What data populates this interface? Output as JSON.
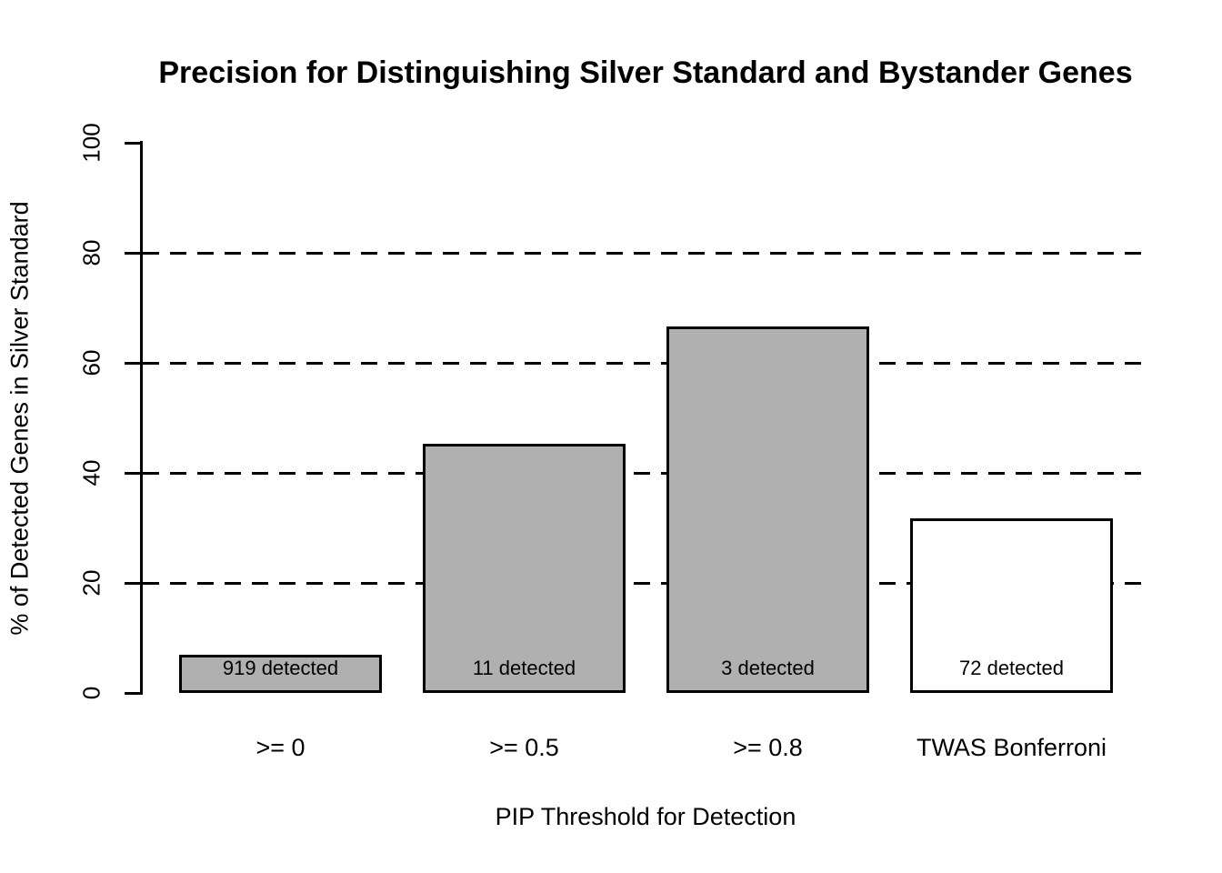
{
  "page": {
    "background": "#ffffff"
  },
  "chart_data": {
    "type": "bar",
    "title": "Precision for Distinguishing Silver Standard and Bystander Genes",
    "xlabel": "PIP Threshold for Detection",
    "ylabel": "% of Detected Genes in Silver Standard",
    "ylim": [
      0,
      100
    ],
    "yticks": [
      0,
      20,
      40,
      60,
      80,
      100
    ],
    "gridlines": [
      20,
      40,
      60,
      80
    ],
    "grid_style": "dashed",
    "grid_color": "#000000",
    "categories": [
      ">= 0",
      ">= 0.5",
      ">= 0.8",
      "TWAS Bonferroni"
    ],
    "values": [
      6.9,
      45.3,
      66.6,
      31.7
    ],
    "bar_labels": [
      "919 detected",
      "11 detected",
      "3 detected",
      "72 detected"
    ],
    "bar_colors": [
      "#b0b0b0",
      "#b0b0b0",
      "#b0b0b0",
      "#ffffff"
    ],
    "bar_border_color": "#000000",
    "legend": null
  }
}
